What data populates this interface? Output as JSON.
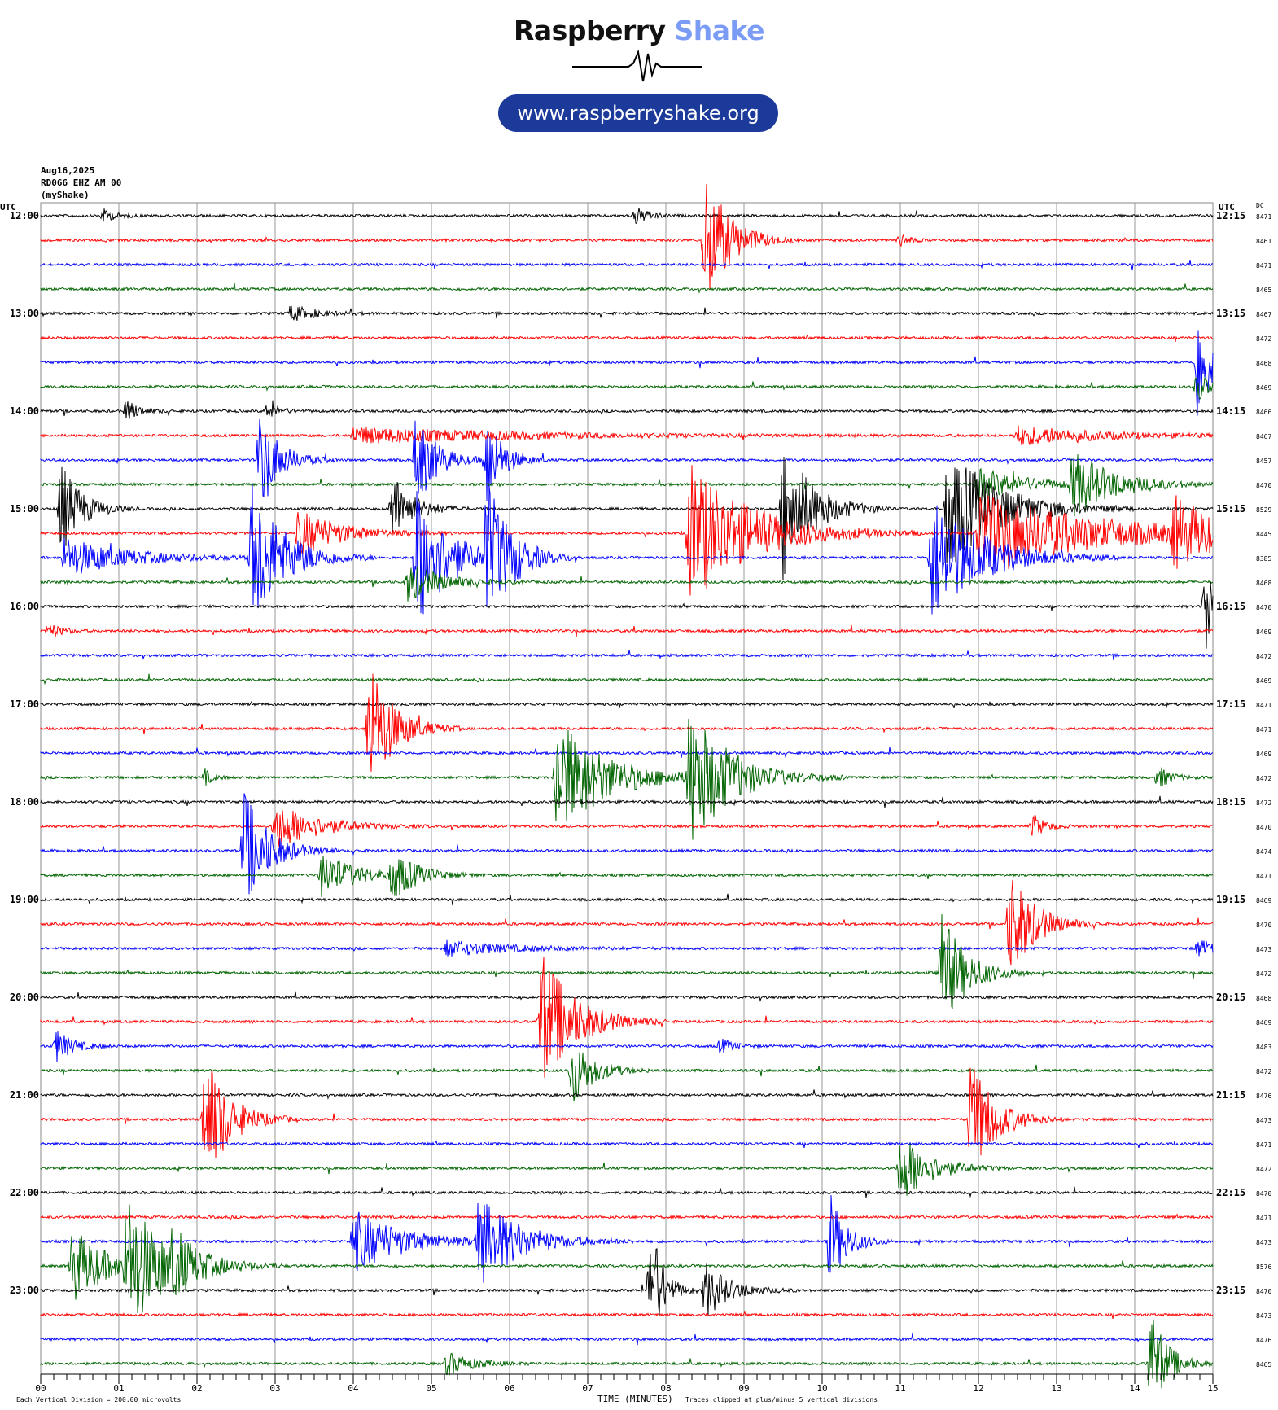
{
  "logo": {
    "word1": "Raspberry",
    "word2": "Shake",
    "url": "www.raspberryshake.org",
    "brand_color": "#7b9cf5",
    "pill_color": "#1c3a9a"
  },
  "header": {
    "date": "Aug16,2025",
    "station": "RD066 EHZ AM 00",
    "network": "(myShake)"
  },
  "chart_data": {
    "type": "line",
    "subtype": "helicorder",
    "xlabel": "TIME (MINUTES)",
    "x_ticks": [
      "00",
      "01",
      "02",
      "03",
      "04",
      "05",
      "06",
      "07",
      "08",
      "09",
      "10",
      "11",
      "12",
      "13",
      "14",
      "15"
    ],
    "xlim": [
      0,
      15
    ],
    "left_axis_label": "UTC",
    "right_axis_label": "UTC",
    "dc_label": "DC",
    "left_time_labels": [
      "12:00",
      "13:00",
      "14:00",
      "15:00",
      "16:00",
      "17:00",
      "18:00",
      "19:00",
      "20:00",
      "21:00",
      "22:00",
      "23:00"
    ],
    "right_time_labels": [
      "12:15",
      "13:15",
      "14:15",
      "15:15",
      "16:15",
      "17:15",
      "18:15",
      "19:15",
      "20:15",
      "21:15",
      "22:15",
      "23:15"
    ],
    "dc_values": [
      8471,
      8461,
      8471,
      8465,
      8467,
      8472,
      8468,
      8469,
      8466,
      8467,
      8457,
      8470,
      8529,
      8445,
      8385,
      8468,
      8470,
      8469,
      8472,
      8469,
      8471,
      8471,
      8469,
      8472,
      8472,
      8470,
      8474,
      8471,
      8469,
      8470,
      8473,
      8472,
      8468,
      8469,
      8483,
      8472,
      8476,
      8473,
      8471,
      8472,
      8470,
      8471,
      8473,
      8576,
      8470,
      8473,
      8476,
      8465
    ],
    "trace_colors": [
      "#000000",
      "#ff0000",
      "#0000ff",
      "#006400"
    ],
    "grid": true,
    "footer_left": "Each Vertical Division =  200.00 microvolts",
    "footer_right": "Traces clipped at plus/minus 5 vertical divisions",
    "events": [
      {
        "row": 0,
        "minute": 0.8,
        "amp": 8,
        "dur": 0.3
      },
      {
        "row": 0,
        "minute": 7.6,
        "amp": 12,
        "dur": 0.3
      },
      {
        "row": 1,
        "minute": 8.5,
        "amp": 85,
        "dur": 0.6
      },
      {
        "row": 1,
        "minute": 11.0,
        "amp": 10,
        "dur": 0.2
      },
      {
        "row": 4,
        "minute": 3.2,
        "amp": 10,
        "dur": 0.6
      },
      {
        "row": 6,
        "minute": 14.8,
        "amp": 75,
        "dur": 0.4
      },
      {
        "row": 7,
        "minute": 14.8,
        "amp": 20,
        "dur": 0.3
      },
      {
        "row": 8,
        "minute": 1.1,
        "amp": 14,
        "dur": 0.3
      },
      {
        "row": 8,
        "minute": 2.9,
        "amp": 10,
        "dur": 0.3
      },
      {
        "row": 9,
        "minute": 4.0,
        "amp": 10,
        "dur": 4.0
      },
      {
        "row": 9,
        "minute": 12.5,
        "amp": 12,
        "dur": 2.0
      },
      {
        "row": 10,
        "minute": 2.8,
        "amp": 60,
        "dur": 0.5
      },
      {
        "row": 10,
        "minute": 4.8,
        "amp": 60,
        "dur": 0.5
      },
      {
        "row": 10,
        "minute": 5.7,
        "amp": 60,
        "dur": 0.4
      },
      {
        "row": 11,
        "minute": 13.2,
        "amp": 40,
        "dur": 1.0
      },
      {
        "row": 11,
        "minute": 12.0,
        "amp": 20,
        "dur": 1.2
      },
      {
        "row": 12,
        "minute": 0.25,
        "amp": 60,
        "dur": 0.5
      },
      {
        "row": 12,
        "minute": 4.5,
        "amp": 45,
        "dur": 0.5
      },
      {
        "row": 12,
        "minute": 9.5,
        "amp": 90,
        "dur": 0.7
      },
      {
        "row": 12,
        "minute": 11.6,
        "amp": 80,
        "dur": 1.2
      },
      {
        "row": 13,
        "minute": 3.3,
        "amp": 30,
        "dur": 1.0
      },
      {
        "row": 13,
        "minute": 8.3,
        "amp": 90,
        "dur": 1.5
      },
      {
        "row": 13,
        "minute": 12.0,
        "amp": 50,
        "dur": 3.0
      },
      {
        "row": 13,
        "minute": 14.5,
        "amp": 40,
        "dur": 1.0
      },
      {
        "row": 14,
        "minute": 0.3,
        "amp": 25,
        "dur": 1.5
      },
      {
        "row": 14,
        "minute": 2.7,
        "amp": 90,
        "dur": 0.8
      },
      {
        "row": 14,
        "minute": 4.8,
        "amp": 90,
        "dur": 0.8
      },
      {
        "row": 14,
        "minute": 5.7,
        "amp": 90,
        "dur": 0.6
      },
      {
        "row": 14,
        "minute": 11.4,
        "amp": 80,
        "dur": 1.2
      },
      {
        "row": 15,
        "minute": 4.7,
        "amp": 25,
        "dur": 0.8
      },
      {
        "row": 16,
        "minute": 14.9,
        "amp": 60,
        "dur": 0.4
      },
      {
        "row": 17,
        "minute": 0.1,
        "amp": 10,
        "dur": 0.3
      },
      {
        "row": 21,
        "minute": 4.2,
        "amp": 85,
        "dur": 0.6
      },
      {
        "row": 23,
        "minute": 2.1,
        "amp": 10,
        "dur": 0.2
      },
      {
        "row": 23,
        "minute": 6.6,
        "amp": 75,
        "dur": 1.2
      },
      {
        "row": 23,
        "minute": 8.3,
        "amp": 85,
        "dur": 1.0
      },
      {
        "row": 23,
        "minute": 14.3,
        "amp": 15,
        "dur": 0.3
      },
      {
        "row": 25,
        "minute": 3.0,
        "amp": 30,
        "dur": 1.0
      },
      {
        "row": 25,
        "minute": 12.7,
        "amp": 15,
        "dur": 0.3
      },
      {
        "row": 26,
        "minute": 2.6,
        "amp": 75,
        "dur": 0.6
      },
      {
        "row": 27,
        "minute": 3.6,
        "amp": 30,
        "dur": 0.8
      },
      {
        "row": 27,
        "minute": 4.5,
        "amp": 30,
        "dur": 0.6
      },
      {
        "row": 29,
        "minute": 12.4,
        "amp": 70,
        "dur": 0.6
      },
      {
        "row": 30,
        "minute": 5.2,
        "amp": 10,
        "dur": 1.5
      },
      {
        "row": 30,
        "minute": 14.8,
        "amp": 10,
        "dur": 0.8
      },
      {
        "row": 31,
        "minute": 11.5,
        "amp": 80,
        "dur": 0.6
      },
      {
        "row": 33,
        "minute": 6.4,
        "amp": 90,
        "dur": 0.8
      },
      {
        "row": 34,
        "minute": 0.2,
        "amp": 20,
        "dur": 0.4
      },
      {
        "row": 34,
        "minute": 8.7,
        "amp": 10,
        "dur": 0.3
      },
      {
        "row": 35,
        "minute": 6.8,
        "amp": 45,
        "dur": 0.5
      },
      {
        "row": 37,
        "minute": 2.1,
        "amp": 85,
        "dur": 0.6
      },
      {
        "row": 37,
        "minute": 11.9,
        "amp": 75,
        "dur": 0.6
      },
      {
        "row": 39,
        "minute": 11.0,
        "amp": 45,
        "dur": 0.7
      },
      {
        "row": 42,
        "minute": 4.0,
        "amp": 40,
        "dur": 1.2
      },
      {
        "row": 42,
        "minute": 5.6,
        "amp": 55,
        "dur": 1.0
      },
      {
        "row": 42,
        "minute": 10.1,
        "amp": 60,
        "dur": 0.4
      },
      {
        "row": 43,
        "minute": 0.4,
        "amp": 50,
        "dur": 0.8
      },
      {
        "row": 43,
        "minute": 1.1,
        "amp": 80,
        "dur": 1.0
      },
      {
        "row": 43,
        "minute": 1.7,
        "amp": 25,
        "dur": 0.5
      },
      {
        "row": 44,
        "minute": 7.8,
        "amp": 90,
        "dur": 0.3
      },
      {
        "row": 44,
        "minute": 8.5,
        "amp": 35,
        "dur": 0.6
      },
      {
        "row": 47,
        "minute": 14.2,
        "amp": 70,
        "dur": 0.4
      },
      {
        "row": 47,
        "minute": 5.2,
        "amp": 15,
        "dur": 0.6
      }
    ]
  }
}
